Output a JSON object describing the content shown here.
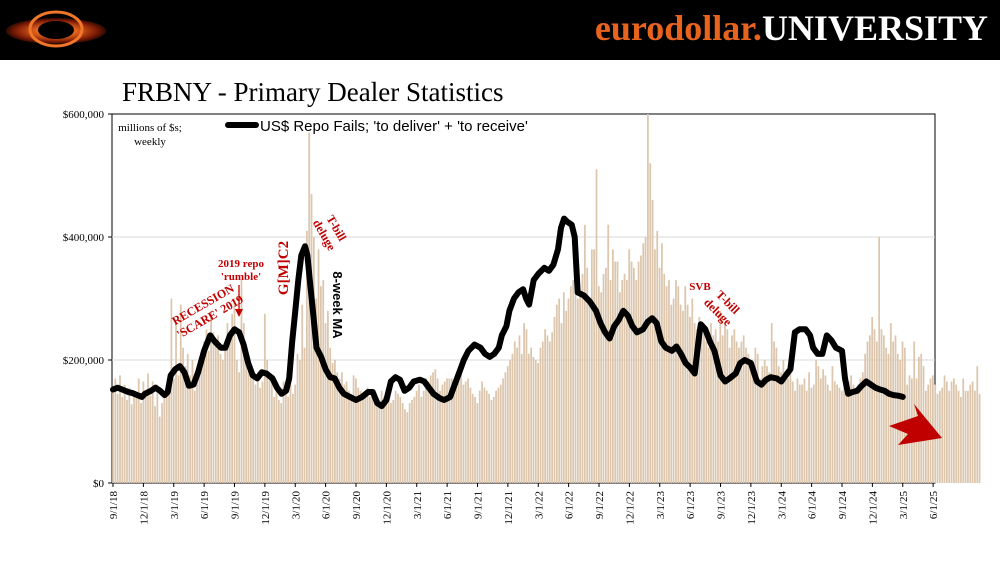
{
  "header": {
    "brand_part1": "eurodollar.",
    "brand_part2": "UNIVERSITY",
    "logo_icon": "eurodollar-university-logo-icon"
  },
  "slide_title": "FRBNY - Primary Dealer Statistics",
  "colors": {
    "bar": "#dcc6ad",
    "ma_line": "#000000",
    "annotation": "#c00000",
    "arrow": "#c00000",
    "banner": "#000000",
    "brand_orange": "#e8641e"
  },
  "chart_data": {
    "type": "bar+line",
    "units_note": "millions of $s; weekly",
    "legend": "US$ Repo Fails; 'to deliver' + 'to receive'",
    "ylim": [
      0,
      600000
    ],
    "y_ticks": [
      "$0",
      "$200,000",
      "$400,000",
      "$600,000"
    ],
    "x_ticks": [
      "9/1/18",
      "12/1/18",
      "3/1/19",
      "6/1/19",
      "9/1/19",
      "12/1/19",
      "3/1/20",
      "6/1/20",
      "9/1/20",
      "12/1/20",
      "3/1/21",
      "6/1/21",
      "9/1/21",
      "12/1/21",
      "3/1/22",
      "6/1/22",
      "9/1/22",
      "12/1/22",
      "3/1/23",
      "6/1/23",
      "9/1/23",
      "12/1/23",
      "3/1/24",
      "6/1/24",
      "9/1/24",
      "12/1/24",
      "3/1/25",
      "6/1/25"
    ],
    "series": [
      {
        "name": "US$ Repo Fails; 'to deliver' + 'to receive' (weekly)",
        "type": "bar",
        "x_start": 0,
        "x_step": 0.0769,
        "values": [
          150000,
          170000,
          145000,
          175000,
          140000,
          160000,
          135000,
          155000,
          128000,
          150000,
          145000,
          170000,
          130000,
          165000,
          150000,
          178000,
          142000,
          165000,
          125000,
          160000,
          108000,
          130000,
          145000,
          160000,
          150000,
          300000,
          170000,
          260000,
          175000,
          290000,
          220000,
          190000,
          210000,
          175000,
          200000,
          150000,
          170000,
          185000,
          195000,
          230000,
          250000,
          215000,
          280000,
          245000,
          230000,
          240000,
          210000,
          200000,
          220000,
          260000,
          245000,
          275000,
          300000,
          200000,
          180000,
          330000,
          260000,
          210000,
          200000,
          185000,
          175000,
          160000,
          180000,
          155000,
          165000,
          275000,
          200000,
          170000,
          165000,
          140000,
          150000,
          135000,
          130000,
          165000,
          150000,
          140000,
          160000,
          145000,
          160000,
          210000,
          200000,
          290000,
          220000,
          410000,
          570000,
          470000,
          400000,
          300000,
          380000,
          320000,
          330000,
          260000,
          280000,
          220000,
          195000,
          200000,
          180000,
          170000,
          180000,
          160000,
          165000,
          150000,
          145000,
          175000,
          170000,
          155000,
          150000,
          145000,
          140000,
          155000,
          140000,
          145000,
          130000,
          140000,
          135000,
          150000,
          140000,
          145000,
          160000,
          130000,
          135000,
          150000,
          145000,
          140000,
          130000,
          120000,
          115000,
          130000,
          135000,
          140000,
          150000,
          160000,
          140000,
          150000,
          170000,
          165000,
          175000,
          180000,
          185000,
          170000,
          150000,
          160000,
          165000,
          170000,
          170000,
          170000,
          165000,
          160000,
          175000,
          180000,
          160000,
          165000,
          170000,
          155000,
          145000,
          140000,
          130000,
          150000,
          165000,
          155000,
          150000,
          145000,
          135000,
          140000,
          150000,
          155000,
          160000,
          170000,
          180000,
          190000,
          200000,
          210000,
          230000,
          220000,
          240000,
          210000,
          260000,
          250000,
          210000,
          220000,
          205000,
          200000,
          195000,
          220000,
          230000,
          250000,
          240000,
          230000,
          245000,
          270000,
          290000,
          300000,
          260000,
          310000,
          280000,
          300000,
          320000,
          330000,
          340000,
          300000,
          310000,
          340000,
          420000,
          350000,
          300000,
          380000,
          380000,
          510000,
          320000,
          310000,
          340000,
          350000,
          420000,
          330000,
          380000,
          360000,
          360000,
          310000,
          330000,
          340000,
          330000,
          380000,
          360000,
          350000,
          330000,
          360000,
          370000,
          390000,
          400000,
          600000,
          520000,
          460000,
          380000,
          410000,
          350000,
          390000,
          340000,
          320000,
          330000,
          290000,
          300000,
          330000,
          320000,
          290000,
          280000,
          320000,
          290000,
          270000,
          300000,
          260000,
          250000,
          270000,
          240000,
          250000,
          230000,
          220000,
          260000,
          240000,
          250000,
          230000,
          280000,
          240000,
          260000,
          250000,
          220000,
          240000,
          250000,
          230000,
          220000,
          230000,
          240000,
          220000,
          210000,
          200000,
          190000,
          220000,
          210000,
          170000,
          190000,
          200000,
          190000,
          180000,
          260000,
          230000,
          220000,
          190000,
          180000,
          200000,
          180000,
          170000,
          190000,
          165000,
          150000,
          170000,
          160000,
          160000,
          170000,
          150000,
          180000,
          155000,
          160000,
          200000,
          190000,
          170000,
          185000,
          175000,
          160000,
          150000,
          190000,
          165000,
          160000,
          155000,
          150000,
          200000,
          170000,
          165000,
          175000,
          160000,
          155000,
          160000,
          170000,
          180000,
          210000,
          230000,
          240000,
          270000,
          250000,
          230000,
          400000,
          250000,
          240000,
          220000,
          210000,
          260000,
          230000,
          240000,
          210000,
          200000,
          230000,
          220000,
          160000,
          175000,
          170000,
          230000,
          170000,
          205000,
          210000,
          190000,
          150000,
          160000,
          170000,
          175000,
          160000,
          145000,
          150000,
          155000,
          175000,
          165000,
          150000,
          165000,
          170000,
          160000,
          150000,
          140000,
          170000,
          150000,
          150000,
          160000,
          165000,
          150000,
          190000,
          145000
        ]
      },
      {
        "name": "8-week MA",
        "type": "line",
        "points": [
          [
            0,
            152000
          ],
          [
            0.15,
            155000
          ],
          [
            0.3,
            152000
          ],
          [
            0.5,
            148000
          ],
          [
            0.65,
            146000
          ],
          [
            0.8,
            143000
          ],
          [
            0.95,
            140000
          ],
          [
            1.05,
            145000
          ],
          [
            1.25,
            150000
          ],
          [
            1.4,
            155000
          ],
          [
            1.55,
            150000
          ],
          [
            1.7,
            143000
          ],
          [
            1.8,
            148000
          ],
          [
            1.9,
            175000
          ],
          [
            2.05,
            185000
          ],
          [
            2.2,
            190000
          ],
          [
            2.35,
            180000
          ],
          [
            2.5,
            158000
          ],
          [
            2.65,
            160000
          ],
          [
            2.8,
            180000
          ],
          [
            3.0,
            215000
          ],
          [
            3.2,
            240000
          ],
          [
            3.35,
            230000
          ],
          [
            3.55,
            220000
          ],
          [
            3.7,
            220000
          ],
          [
            3.85,
            240000
          ],
          [
            4.0,
            250000
          ],
          [
            4.15,
            245000
          ],
          [
            4.3,
            225000
          ],
          [
            4.45,
            195000
          ],
          [
            4.6,
            175000
          ],
          [
            4.75,
            170000
          ],
          [
            4.9,
            180000
          ],
          [
            5.05,
            178000
          ],
          [
            5.25,
            170000
          ],
          [
            5.4,
            155000
          ],
          [
            5.55,
            145000
          ],
          [
            5.7,
            150000
          ],
          [
            5.8,
            170000
          ],
          [
            5.9,
            230000
          ],
          [
            6.0,
            280000
          ],
          [
            6.1,
            330000
          ],
          [
            6.2,
            370000
          ],
          [
            6.32,
            385000
          ],
          [
            6.4,
            370000
          ],
          [
            6.5,
            320000
          ],
          [
            6.6,
            270000
          ],
          [
            6.7,
            220000
          ],
          [
            6.85,
            205000
          ],
          [
            7.0,
            185000
          ],
          [
            7.15,
            172000
          ],
          [
            7.3,
            170000
          ],
          [
            7.45,
            155000
          ],
          [
            7.6,
            145000
          ],
          [
            7.8,
            140000
          ],
          [
            8.0,
            135000
          ],
          [
            8.2,
            140000
          ],
          [
            8.4,
            148000
          ],
          [
            8.55,
            148000
          ],
          [
            8.7,
            130000
          ],
          [
            8.85,
            125000
          ],
          [
            9.0,
            135000
          ],
          [
            9.15,
            165000
          ],
          [
            9.3,
            172000
          ],
          [
            9.45,
            168000
          ],
          [
            9.6,
            150000
          ],
          [
            9.75,
            155000
          ],
          [
            9.9,
            165000
          ],
          [
            10.1,
            168000
          ],
          [
            10.25,
            165000
          ],
          [
            10.4,
            155000
          ],
          [
            10.55,
            145000
          ],
          [
            10.75,
            138000
          ],
          [
            10.9,
            135000
          ],
          [
            11.1,
            140000
          ],
          [
            11.25,
            160000
          ],
          [
            11.4,
            180000
          ],
          [
            11.55,
            200000
          ],
          [
            11.7,
            215000
          ],
          [
            11.9,
            225000
          ],
          [
            12.1,
            220000
          ],
          [
            12.25,
            210000
          ],
          [
            12.4,
            205000
          ],
          [
            12.55,
            210000
          ],
          [
            12.7,
            220000
          ],
          [
            12.8,
            240000
          ],
          [
            12.95,
            255000
          ],
          [
            13.05,
            280000
          ],
          [
            13.2,
            300000
          ],
          [
            13.35,
            310000
          ],
          [
            13.5,
            315000
          ],
          [
            13.6,
            300000
          ],
          [
            13.7,
            290000
          ],
          [
            13.85,
            330000
          ],
          [
            14.0,
            340000
          ],
          [
            14.2,
            350000
          ],
          [
            14.35,
            345000
          ],
          [
            14.5,
            355000
          ],
          [
            14.65,
            380000
          ],
          [
            14.75,
            415000
          ],
          [
            14.85,
            430000
          ],
          [
            14.95,
            425000
          ],
          [
            15.1,
            420000
          ],
          [
            15.2,
            400000
          ],
          [
            15.3,
            310000
          ],
          [
            15.5,
            305000
          ],
          [
            15.7,
            295000
          ],
          [
            15.9,
            280000
          ],
          [
            16.05,
            260000
          ],
          [
            16.2,
            245000
          ],
          [
            16.35,
            235000
          ],
          [
            16.5,
            255000
          ],
          [
            16.65,
            265000
          ],
          [
            16.8,
            280000
          ],
          [
            16.95,
            272000
          ],
          [
            17.1,
            255000
          ],
          [
            17.25,
            245000
          ],
          [
            17.45,
            250000
          ],
          [
            17.6,
            262000
          ],
          [
            17.75,
            268000
          ],
          [
            17.9,
            260000
          ],
          [
            18.05,
            230000
          ],
          [
            18.2,
            220000
          ],
          [
            18.4,
            215000
          ],
          [
            18.55,
            222000
          ],
          [
            18.7,
            210000
          ],
          [
            18.85,
            195000
          ],
          [
            19.0,
            188000
          ],
          [
            19.15,
            178000
          ],
          [
            19.3,
            240000
          ],
          [
            19.35,
            258000
          ],
          [
            19.5,
            250000
          ],
          [
            19.65,
            230000
          ],
          [
            19.8,
            215000
          ],
          [
            20.0,
            175000
          ],
          [
            20.15,
            165000
          ],
          [
            20.3,
            170000
          ],
          [
            20.5,
            178000
          ],
          [
            20.65,
            195000
          ],
          [
            20.8,
            200000
          ],
          [
            21.0,
            195000
          ],
          [
            21.1,
            180000
          ],
          [
            21.2,
            165000
          ],
          [
            21.35,
            160000
          ],
          [
            21.5,
            168000
          ],
          [
            21.65,
            172000
          ],
          [
            21.85,
            170000
          ],
          [
            22.0,
            165000
          ],
          [
            22.15,
            175000
          ],
          [
            22.3,
            185000
          ],
          [
            22.45,
            245000
          ],
          [
            22.6,
            250000
          ],
          [
            22.8,
            250000
          ],
          [
            22.95,
            240000
          ],
          [
            23.05,
            220000
          ],
          [
            23.2,
            210000
          ],
          [
            23.35,
            210000
          ],
          [
            23.5,
            240000
          ],
          [
            23.65,
            232000
          ],
          [
            23.8,
            220000
          ],
          [
            24.0,
            215000
          ],
          [
            24.1,
            170000
          ],
          [
            24.2,
            145000
          ],
          [
            24.35,
            148000
          ],
          [
            24.5,
            150000
          ],
          [
            24.65,
            158000
          ],
          [
            24.8,
            165000
          ],
          [
            24.95,
            160000
          ],
          [
            25.1,
            155000
          ],
          [
            25.25,
            152000
          ],
          [
            25.4,
            150000
          ],
          [
            25.55,
            145000
          ],
          [
            25.7,
            143000
          ],
          [
            25.85,
            142000
          ],
          [
            26.0,
            140000
          ]
        ]
      }
    ],
    "annotations": [
      "RECESSION 'SCARE' 2019",
      "2019 repo 'rumble'",
      "G[M]C2",
      "T-bill deluge",
      "8-week MA",
      "SVB",
      "T-bill deluge"
    ]
  }
}
